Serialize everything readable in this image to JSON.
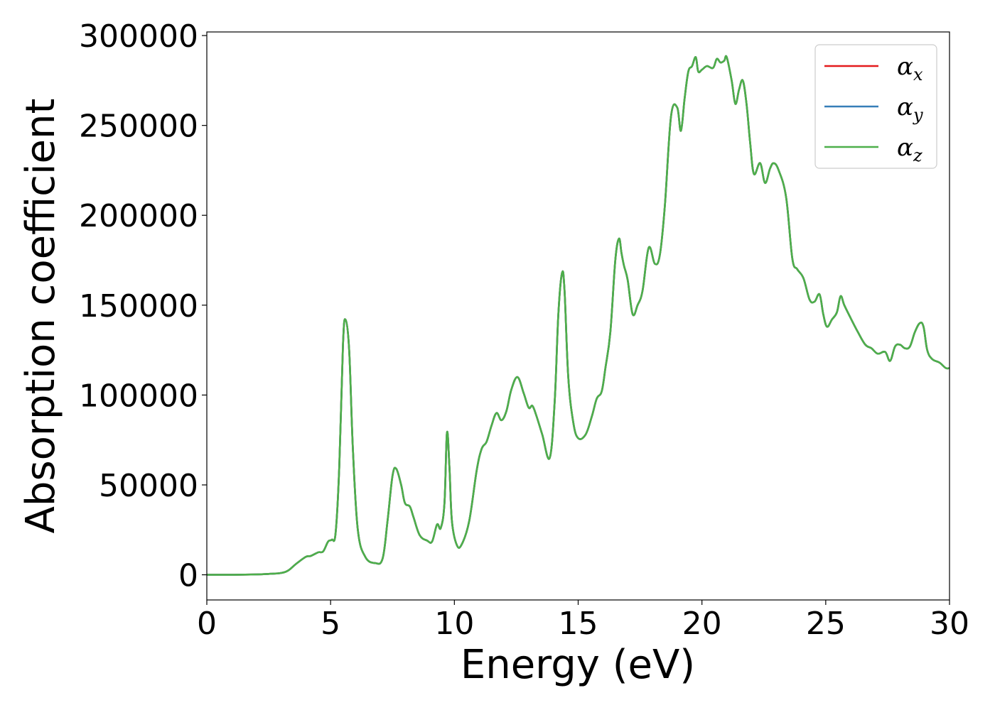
{
  "chart_data": {
    "type": "line",
    "title": "",
    "xlabel": "Energy (eV)",
    "ylabel": "Absorption coefficient",
    "xlim": [
      0,
      30
    ],
    "ylim": [
      -14000,
      302000
    ],
    "grid": false,
    "legend_position": "top-right",
    "x_ticks": [
      0,
      5,
      10,
      15,
      20,
      25,
      30
    ],
    "x_tick_labels": [
      "0",
      "5",
      "10",
      "15",
      "20",
      "25",
      "30"
    ],
    "y_ticks": [
      0,
      50000,
      100000,
      150000,
      200000,
      250000,
      300000
    ],
    "y_tick_labels": [
      "0",
      "50000",
      "100000",
      "150000",
      "200000",
      "250000",
      "300000"
    ],
    "legend": [
      {
        "base": "α",
        "sub": "x",
        "color": "#e41a1c"
      },
      {
        "base": "α",
        "sub": "y",
        "color": "#377eb8"
      },
      {
        "base": "α",
        "sub": "z",
        "color": "#4daf4a"
      }
    ],
    "x": [
      0,
      1,
      2,
      2.5,
      3,
      3.3,
      3.6,
      4.0,
      4.2,
      4.5,
      4.7,
      4.9,
      5.05,
      5.2,
      5.35,
      5.5,
      5.6,
      5.75,
      5.9,
      6.1,
      6.4,
      6.8,
      7.1,
      7.3,
      7.5,
      7.65,
      7.85,
      8.0,
      8.2,
      8.35,
      8.6,
      8.9,
      9.1,
      9.3,
      9.45,
      9.6,
      9.7,
      9.8,
      9.9,
      10.1,
      10.3,
      10.6,
      10.9,
      11.1,
      11.3,
      11.5,
      11.7,
      11.9,
      12.1,
      12.3,
      12.55,
      12.8,
      13.0,
      13.15,
      13.3,
      13.55,
      13.85,
      14.05,
      14.2,
      14.35,
      14.45,
      14.6,
      14.8,
      15.0,
      15.3,
      15.55,
      15.75,
      15.95,
      16.1,
      16.3,
      16.5,
      16.65,
      16.75,
      16.85,
      17.0,
      17.2,
      17.4,
      17.6,
      17.85,
      18.1,
      18.3,
      18.5,
      18.75,
      19.0,
      19.15,
      19.3,
      19.45,
      19.6,
      19.75,
      19.85,
      20.0,
      20.2,
      20.45,
      20.6,
      20.75,
      20.9,
      21.0,
      21.2,
      21.35,
      21.5,
      21.65,
      21.8,
      21.95,
      22.1,
      22.35,
      22.55,
      22.75,
      22.9,
      23.1,
      23.4,
      23.65,
      23.85,
      24.1,
      24.35,
      24.55,
      24.75,
      24.9,
      25.05,
      25.25,
      25.45,
      25.6,
      25.75,
      26.0,
      26.3,
      26.6,
      26.85,
      27.1,
      27.4,
      27.6,
      27.8,
      28.0,
      28.2,
      28.4,
      28.6,
      28.8,
      28.95,
      29.1,
      29.3,
      29.6,
      29.85,
      30.0
    ],
    "series": [
      {
        "name": "α_x",
        "color": "#e41a1c",
        "y": [
          0,
          0,
          200,
          500,
          1000,
          2500,
          6000,
          10000,
          10500,
          12500,
          13000,
          18500,
          19500,
          23000,
          60000,
          128000,
          142000,
          125000,
          70000,
          25000,
          10000,
          6500,
          9000,
          30000,
          55000,
          59000,
          50000,
          40000,
          38000,
          32000,
          22000,
          19000,
          18500,
          28000,
          26000,
          40000,
          79000,
          60000,
          30000,
          16500,
          17000,
          30000,
          58000,
          70000,
          74000,
          83000,
          90000,
          86000,
          91000,
          103000,
          110000,
          101000,
          93000,
          94000,
          89000,
          78000,
          65000,
          96000,
          145000,
          168000,
          158000,
          110000,
          85000,
          76000,
          78000,
          88000,
          98000,
          102000,
          115000,
          135000,
          175000,
          187000,
          179000,
          172000,
          164000,
          145000,
          150000,
          158000,
          182000,
          173000,
          178000,
          205000,
          255000,
          260000,
          247000,
          265000,
          280000,
          283000,
          288000,
          280000,
          281000,
          283000,
          282000,
          287000,
          285000,
          286000,
          288000,
          275000,
          262000,
          270000,
          275000,
          262000,
          240000,
          223000,
          229000,
          218000,
          226000,
          229000,
          225000,
          210000,
          176000,
          170000,
          165000,
          153000,
          152000,
          156000,
          145000,
          138000,
          142000,
          146000,
          155000,
          150000,
          143000,
          135000,
          128000,
          126000,
          123000,
          124000,
          119000,
          127000,
          128000,
          126000,
          127000,
          135000,
          140000,
          138000,
          125000,
          120000,
          118000,
          115000,
          115000
        ]
      },
      {
        "name": "α_y",
        "color": "#377eb8",
        "y": [
          0,
          0,
          200,
          500,
          1000,
          2500,
          6000,
          10000,
          10500,
          12500,
          13000,
          18500,
          19500,
          23000,
          60000,
          128000,
          142000,
          125000,
          70000,
          25000,
          10000,
          6500,
          9000,
          30000,
          55000,
          59000,
          50000,
          40000,
          38000,
          32000,
          22000,
          19000,
          18500,
          28000,
          26000,
          40000,
          79000,
          60000,
          30000,
          16500,
          17000,
          30000,
          58000,
          70000,
          74000,
          83000,
          90000,
          86000,
          91000,
          103000,
          110000,
          101000,
          93000,
          94000,
          89000,
          78000,
          65000,
          96000,
          145000,
          168000,
          158000,
          110000,
          85000,
          76000,
          78000,
          88000,
          98000,
          102000,
          115000,
          135000,
          175000,
          187000,
          179000,
          172000,
          164000,
          145000,
          150000,
          158000,
          182000,
          173000,
          178000,
          205000,
          255000,
          260000,
          247000,
          265000,
          280000,
          283000,
          288000,
          280000,
          281000,
          283000,
          282000,
          287000,
          285000,
          286000,
          288000,
          275000,
          262000,
          270000,
          275000,
          262000,
          240000,
          223000,
          229000,
          218000,
          226000,
          229000,
          225000,
          210000,
          176000,
          170000,
          165000,
          153000,
          152000,
          156000,
          145000,
          138000,
          142000,
          146000,
          155000,
          150000,
          143000,
          135000,
          128000,
          126000,
          123000,
          124000,
          119000,
          127000,
          128000,
          126000,
          127000,
          135000,
          140000,
          138000,
          125000,
          120000,
          118000,
          115000,
          115000
        ]
      },
      {
        "name": "α_z",
        "color": "#4daf4a",
        "y": [
          0,
          0,
          200,
          500,
          1000,
          2500,
          6000,
          10000,
          10500,
          12500,
          13000,
          18500,
          19500,
          23000,
          60000,
          128000,
          142000,
          125000,
          70000,
          25000,
          10000,
          6500,
          9000,
          30000,
          55000,
          59000,
          50000,
          40000,
          38000,
          32000,
          22000,
          19000,
          18500,
          28000,
          26000,
          40000,
          79000,
          60000,
          30000,
          16500,
          17000,
          30000,
          58000,
          70000,
          74000,
          83000,
          90000,
          86000,
          91000,
          103000,
          110000,
          101000,
          93000,
          94000,
          89000,
          78000,
          65000,
          96000,
          145000,
          168000,
          158000,
          110000,
          85000,
          76000,
          78000,
          88000,
          98000,
          102000,
          115000,
          135000,
          175000,
          187000,
          179000,
          172000,
          164000,
          145000,
          150000,
          158000,
          182000,
          173000,
          178000,
          205000,
          255000,
          260000,
          247000,
          265000,
          280000,
          283000,
          288000,
          280000,
          281000,
          283000,
          282000,
          287000,
          285000,
          286000,
          288000,
          275000,
          262000,
          270000,
          275000,
          262000,
          240000,
          223000,
          229000,
          218000,
          226000,
          229000,
          225000,
          210000,
          176000,
          170000,
          165000,
          153000,
          152000,
          156000,
          145000,
          138000,
          142000,
          146000,
          155000,
          150000,
          143000,
          135000,
          128000,
          126000,
          123000,
          124000,
          119000,
          127000,
          128000,
          126000,
          127000,
          135000,
          140000,
          138000,
          125000,
          120000,
          118000,
          115000,
          115000
        ]
      }
    ]
  }
}
